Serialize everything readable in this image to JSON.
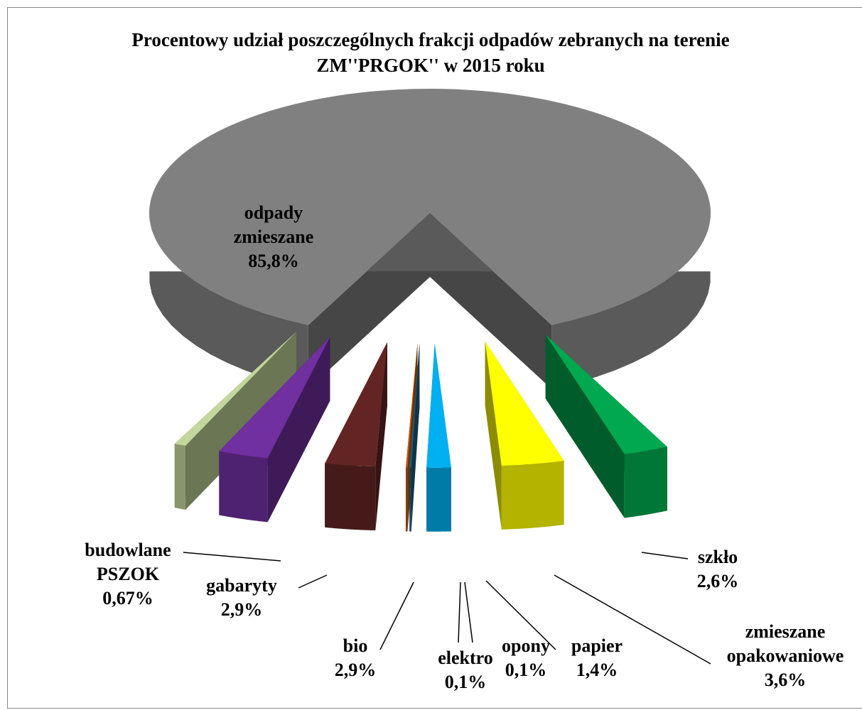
{
  "chart_data": {
    "type": "pie",
    "title": "Procentowy udział poszczególnych frakcji odpadów zebranych na terenie ZM''PRGOK'' w 2015 roku",
    "categories": [
      "odpady zmieszane",
      "szkło",
      "zmieszane opakowaniowe",
      "papier",
      "opony",
      "elektro",
      "bio",
      "gabaryty",
      "budowlane PSZOK"
    ],
    "values": [
      85.8,
      2.6,
      3.6,
      1.4,
      0.1,
      0.1,
      2.9,
      2.9,
      0.67
    ],
    "value_labels": [
      "85,8%",
      "2,6%",
      "3,6%",
      "1,4%",
      "0,1%",
      "0,1%",
      "2,9%",
      "2,9%",
      "0,67%"
    ],
    "colors": [
      "#808080",
      "#00a84f",
      "#ffff00",
      "#00b0f0",
      "#1f5f7f",
      "#c55a11",
      "#632523",
      "#7030a0",
      "#c3d69b"
    ]
  }
}
